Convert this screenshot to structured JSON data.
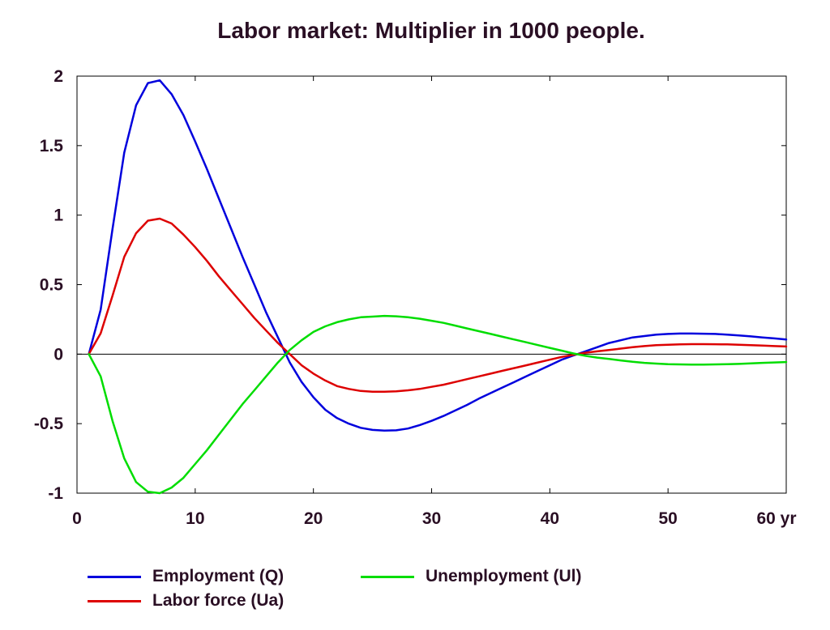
{
  "chart_data": {
    "type": "line",
    "title": "Labor market: Multiplier in 1000 people.",
    "xlabel": "",
    "ylabel": "",
    "x_unit_label": "yr",
    "xlim": [
      0,
      60
    ],
    "ylim": [
      -1,
      2
    ],
    "x_ticks": [
      {
        "value": 0,
        "label": "0"
      },
      {
        "value": 10,
        "label": "10"
      },
      {
        "value": 20,
        "label": "20"
      },
      {
        "value": 30,
        "label": "30"
      },
      {
        "value": 40,
        "label": "40"
      },
      {
        "value": 50,
        "label": "50"
      },
      {
        "value": 60,
        "label": "60 yr"
      }
    ],
    "y_ticks": [
      {
        "value": 2,
        "label": "2"
      },
      {
        "value": 1.5,
        "label": "1.5"
      },
      {
        "value": 1,
        "label": "1"
      },
      {
        "value": 0.5,
        "label": "0.5"
      },
      {
        "value": 0,
        "label": "0"
      },
      {
        "value": -0.5,
        "label": "-0.5"
      },
      {
        "value": -1,
        "label": "-1"
      }
    ],
    "zero_line": true,
    "grid": false,
    "legend_position": "bottom",
    "x": [
      1,
      2,
      3,
      4,
      5,
      6,
      7,
      8,
      9,
      10,
      11,
      12,
      13,
      14,
      15,
      16,
      17,
      18,
      19,
      20,
      21,
      22,
      23,
      24,
      25,
      26,
      27,
      28,
      29,
      30,
      31,
      32,
      33,
      34,
      35,
      36,
      37,
      38,
      39,
      40,
      41,
      42,
      43,
      44,
      45,
      46,
      47,
      48,
      49,
      50,
      51,
      52,
      53,
      54,
      55,
      56,
      57,
      58,
      59,
      60
    ],
    "series": [
      {
        "name": "Employment (Q)",
        "color": "#0000dd",
        "values": [
          0,
          0.32,
          0.9,
          1.45,
          1.79,
          1.95,
          1.97,
          1.87,
          1.72,
          1.53,
          1.33,
          1.12,
          0.91,
          0.7,
          0.5,
          0.3,
          0.12,
          -0.06,
          -0.2,
          -0.31,
          -0.4,
          -0.46,
          -0.5,
          -0.53,
          -0.545,
          -0.55,
          -0.548,
          -0.535,
          -0.51,
          -0.48,
          -0.445,
          -0.405,
          -0.365,
          -0.32,
          -0.28,
          -0.24,
          -0.2,
          -0.16,
          -0.12,
          -0.08,
          -0.04,
          -0.01,
          0.02,
          0.05,
          0.08,
          0.1,
          0.12,
          0.13,
          0.14,
          0.145,
          0.148,
          0.148,
          0.147,
          0.145,
          0.14,
          0.135,
          0.128,
          0.12,
          0.113,
          0.105
        ]
      },
      {
        "name": "Labor force (Ua)",
        "color": "#dd0000",
        "values": [
          0,
          0.15,
          0.42,
          0.7,
          0.87,
          0.96,
          0.975,
          0.94,
          0.86,
          0.77,
          0.67,
          0.56,
          0.46,
          0.36,
          0.26,
          0.17,
          0.08,
          0.0,
          -0.08,
          -0.14,
          -0.19,
          -0.23,
          -0.25,
          -0.265,
          -0.27,
          -0.27,
          -0.268,
          -0.26,
          -0.25,
          -0.235,
          -0.22,
          -0.2,
          -0.18,
          -0.16,
          -0.14,
          -0.12,
          -0.1,
          -0.08,
          -0.06,
          -0.04,
          -0.02,
          -0.005,
          0.01,
          0.02,
          0.03,
          0.04,
          0.05,
          0.058,
          0.064,
          0.068,
          0.07,
          0.072,
          0.072,
          0.071,
          0.07,
          0.068,
          0.065,
          0.062,
          0.058,
          0.055
        ]
      },
      {
        "name": "Unemployment (Ul)",
        "color": "#00dd00",
        "values": [
          0,
          -0.16,
          -0.48,
          -0.75,
          -0.92,
          -0.99,
          -1.0,
          -0.96,
          -0.89,
          -0.79,
          -0.69,
          -0.58,
          -0.47,
          -0.36,
          -0.26,
          -0.16,
          -0.06,
          0.03,
          0.1,
          0.16,
          0.2,
          0.23,
          0.25,
          0.265,
          0.27,
          0.275,
          0.272,
          0.265,
          0.255,
          0.24,
          0.225,
          0.205,
          0.185,
          0.165,
          0.145,
          0.125,
          0.105,
          0.085,
          0.065,
          0.045,
          0.025,
          0.005,
          -0.012,
          -0.025,
          -0.035,
          -0.045,
          -0.055,
          -0.063,
          -0.068,
          -0.072,
          -0.074,
          -0.075,
          -0.075,
          -0.074,
          -0.072,
          -0.07,
          -0.067,
          -0.063,
          -0.06,
          -0.057
        ]
      }
    ]
  },
  "legend": {
    "items": [
      {
        "label": "Employment (Q)",
        "color": "#0000dd"
      },
      {
        "label": "Labor force (Ua)",
        "color": "#dd0000"
      },
      {
        "label": "Unemployment (Ul)",
        "color": "#00dd00"
      }
    ]
  }
}
